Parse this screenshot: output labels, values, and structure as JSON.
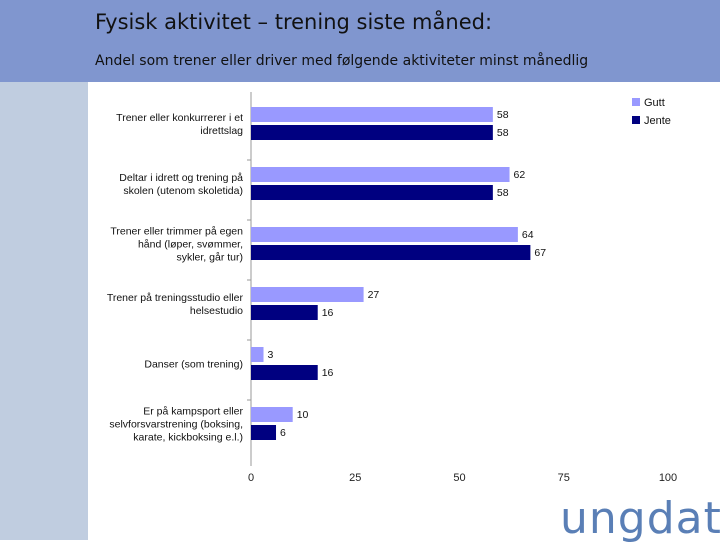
{
  "slide": {
    "title": "Fysisk aktivitet – trening siste måned:",
    "subtitle": "Andel som trener eller driver med følgende aktiviteter minst månedlig",
    "logo": "ungdata"
  },
  "colors": {
    "header": "#8096cf",
    "sidebar": "#c0cde0",
    "gutt": "#9999ff",
    "jente": "#000080",
    "logo": "#5a7fb6"
  },
  "chart_data": {
    "type": "bar",
    "orientation": "horizontal",
    "categories": [
      [
        "Trener eller konkurrerer i et",
        "idrettslag"
      ],
      [
        "Deltar i idrett og trening på",
        "skolen (utenom skoletida)"
      ],
      [
        "Trener eller trimmer på egen",
        "hånd (løper, svømmer,",
        "sykler, går tur)"
      ],
      [
        "Trener på treningsstudio eller",
        "helsestudio"
      ],
      [
        "Danser (som trening)"
      ],
      [
        "Er på kampsport eller",
        "selvforsvarstrening (boksing,",
        "karate, kickboksing e.l.)"
      ]
    ],
    "series": [
      {
        "name": "Gutt",
        "color": "#9999ff",
        "values": [
          58,
          62,
          64,
          27,
          3,
          10
        ]
      },
      {
        "name": "Jente",
        "color": "#000080",
        "values": [
          58,
          58,
          67,
          16,
          16,
          6
        ]
      }
    ],
    "xlim": [
      0,
      100
    ],
    "xticks": [
      0,
      25,
      50,
      75,
      100
    ],
    "legend": "top-right"
  }
}
